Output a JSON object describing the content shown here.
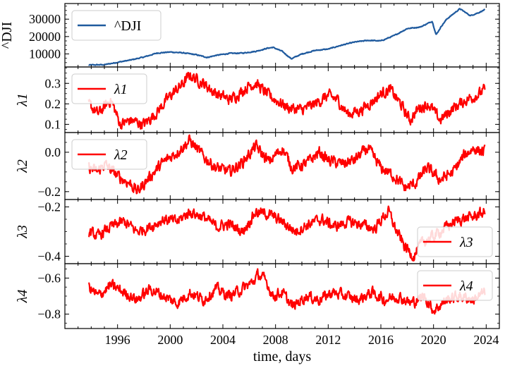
{
  "chart_data": {
    "type": "line",
    "xlabel": "time, days",
    "x_tick_labels": [
      "1996",
      "2000",
      "2004",
      "2008",
      "2012",
      "2016",
      "2020",
      "2024"
    ],
    "xlim": [
      1992.0,
      2025.0
    ],
    "panels": [
      {
        "ylabel": "^DJI",
        "ylim": [
          2500,
          39000
        ],
        "yticks": [
          10000,
          20000,
          30000
        ],
        "ytick_labels": [
          "10000",
          "20000",
          "30000"
        ],
        "legend": "top-left",
        "series": [
          {
            "name": "^DJI",
            "color": "#1f5a9e",
            "x": [
              1993.8,
              1995.0,
              1996.0,
              1997.0,
              1998.0,
              1999.0,
              2000.0,
              2001.0,
              2002.0,
              2002.8,
              2003.5,
              2004.5,
              2005.5,
              2006.5,
              2007.4,
              2007.8,
              2008.5,
              2009.2,
              2010.0,
              2011.0,
              2012.0,
              2013.0,
              2014.0,
              2015.0,
              2016.0,
              2017.0,
              2018.0,
              2019.0,
              2019.9,
              2020.2,
              2020.6,
              2021.0,
              2022.0,
              2022.8,
              2023.5,
              2023.9
            ],
            "values": [
              3600,
              3800,
              5200,
              6500,
              8200,
              10500,
              11100,
              10600,
              9500,
              8000,
              9200,
              10300,
              10500,
              11500,
              13300,
              13800,
              11500,
              7200,
              10000,
              12000,
              12800,
              15000,
              16800,
              17800,
              17500,
              20500,
              24600,
              25500,
              28800,
              21000,
              26000,
              30000,
              36000,
              32000,
              34000,
              35500
            ]
          }
        ]
      },
      {
        "ylabel": "λ1",
        "ylim": [
          0.06,
          0.38
        ],
        "yticks": [
          0.1,
          0.2,
          0.3
        ],
        "ytick_labels": [
          "0.1",
          "0.2",
          "0.3"
        ],
        "legend": "top-left",
        "series": [
          {
            "name": "λ1",
            "color": "#ff0000",
            "x": [
              1993.8,
              1994.5,
              1995.5,
              1996.2,
              1997.0,
              1998.0,
              1999.0,
              2000.0,
              2001.0,
              2001.5,
              2002.5,
              2003.5,
              2004.5,
              2005.0,
              2006.0,
              2006.5,
              2007.5,
              2008.0,
              2009.0,
              2010.0,
              2011.0,
              2012.0,
              2012.7,
              2013.5,
              2014.5,
              2015.5,
              2016.0,
              2016.7,
              2017.5,
              2018.2,
              2018.9,
              2019.6,
              2020.5,
              2021.5,
              2022.5,
              2023.5,
              2023.9
            ],
            "values": [
              0.2,
              0.15,
              0.22,
              0.1,
              0.12,
              0.1,
              0.16,
              0.24,
              0.3,
              0.34,
              0.3,
              0.25,
              0.22,
              0.24,
              0.29,
              0.3,
              0.24,
              0.22,
              0.18,
              0.17,
              0.2,
              0.24,
              0.22,
              0.15,
              0.17,
              0.22,
              0.25,
              0.27,
              0.2,
              0.12,
              0.18,
              0.2,
              0.12,
              0.18,
              0.22,
              0.25,
              0.27
            ]
          }
        ]
      },
      {
        "ylabel": "λ2",
        "ylim": [
          -0.24,
          0.1
        ],
        "yticks": [
          -0.2,
          0.0
        ],
        "ytick_labels": [
          "−0.2",
          "0.0"
        ],
        "legend": "top-left",
        "series": [
          {
            "name": "λ2",
            "color": "#ff0000",
            "x": [
              1993.8,
              1994.5,
              1995.0,
              1996.0,
              1997.0,
              1997.5,
              1998.5,
              1999.5,
              2000.5,
              2001.5,
              2002.5,
              2003.5,
              2004.5,
              2005.5,
              2006.5,
              2007.5,
              2008.5,
              2009.3,
              2010.3,
              2011.3,
              2012.0,
              2013.0,
              2014.0,
              2015.0,
              2016.0,
              2017.0,
              2017.8,
              2018.6,
              2019.5,
              2020.5,
              2021.5,
              2022.3,
              2023.0,
              2023.9
            ],
            "values": [
              -0.08,
              -0.1,
              -0.06,
              -0.12,
              -0.16,
              -0.2,
              -0.12,
              -0.05,
              0.0,
              0.06,
              -0.02,
              -0.08,
              -0.1,
              -0.05,
              0.03,
              -0.05,
              0.02,
              -0.08,
              -0.06,
              0.0,
              -0.04,
              -0.06,
              -0.04,
              0.02,
              -0.08,
              -0.12,
              -0.18,
              -0.16,
              -0.08,
              -0.14,
              -0.1,
              -0.02,
              0.02,
              0.0
            ]
          }
        ]
      },
      {
        "ylabel": "λ3",
        "ylim": [
          -0.43,
          -0.17
        ],
        "yticks": [
          -0.4,
          -0.2
        ],
        "ytick_labels": [
          "−0.4",
          "−0.2"
        ],
        "legend": "bottom-right",
        "series": [
          {
            "name": "λ3",
            "color": "#ff0000",
            "x": [
              1993.8,
              1994.5,
              1995.5,
              1996.5,
              1997.5,
              1998.5,
              1999.5,
              2000.5,
              2001.5,
              2002.5,
              2003.5,
              2004.5,
              2005.5,
              2006.5,
              2007.5,
              2008.5,
              2009.5,
              2010.5,
              2011.5,
              2012.5,
              2013.5,
              2014.5,
              2015.5,
              2016.2,
              2016.6,
              2017.2,
              2017.8,
              2018.5,
              2019.2,
              2020.0,
              2021.0,
              2022.0,
              2023.0,
              2023.9
            ],
            "values": [
              -0.3,
              -0.32,
              -0.28,
              -0.26,
              -0.3,
              -0.28,
              -0.25,
              -0.26,
              -0.22,
              -0.24,
              -0.28,
              -0.27,
              -0.3,
              -0.22,
              -0.23,
              -0.26,
              -0.3,
              -0.27,
              -0.25,
              -0.28,
              -0.26,
              -0.27,
              -0.29,
              -0.24,
              -0.22,
              -0.3,
              -0.36,
              -0.4,
              -0.34,
              -0.32,
              -0.28,
              -0.25,
              -0.24,
              -0.22
            ]
          }
        ]
      },
      {
        "ylabel": "λ4",
        "ylim": [
          -0.88,
          -0.52
        ],
        "yticks": [
          -0.8,
          -0.6
        ],
        "ytick_labels": [
          "−0.8",
          "−0.6"
        ],
        "legend": "top-right",
        "series": [
          {
            "name": "λ4",
            "color": "#ff0000",
            "x": [
              1993.8,
              1994.5,
              1995.5,
              1996.5,
              1997.5,
              1998.5,
              1999.5,
              2000.5,
              2001.5,
              2002.5,
              2003.5,
              2004.5,
              2005.5,
              2006.3,
              2006.7,
              2007.3,
              2007.8,
              2008.5,
              2009.3,
              2010.3,
              2011.3,
              2012.3,
              2013.3,
              2014.3,
              2015.3,
              2016.3,
              2017.3,
              2018.3,
              2019.3,
              2020.0,
              2021.0,
              2022.0,
              2023.0,
              2023.9
            ],
            "values": [
              -0.65,
              -0.7,
              -0.64,
              -0.68,
              -0.72,
              -0.66,
              -0.7,
              -0.74,
              -0.68,
              -0.72,
              -0.66,
              -0.7,
              -0.66,
              -0.62,
              -0.58,
              -0.62,
              -0.7,
              -0.68,
              -0.76,
              -0.7,
              -0.72,
              -0.68,
              -0.7,
              -0.72,
              -0.68,
              -0.72,
              -0.7,
              -0.74,
              -0.7,
              -0.78,
              -0.72,
              -0.7,
              -0.72,
              -0.68
            ]
          }
        ]
      }
    ]
  }
}
